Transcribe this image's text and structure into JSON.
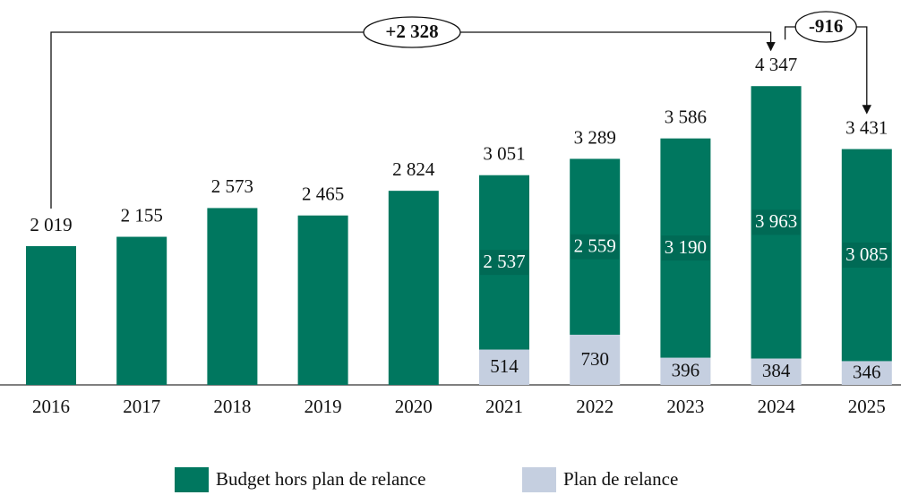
{
  "chart_data": {
    "type": "stacked_bar",
    "categories": [
      "2016",
      "2017",
      "2018",
      "2019",
      "2020",
      "2021",
      "2022",
      "2023",
      "2024",
      "2025"
    ],
    "series": [
      {
        "name": "Budget hors plan de relance",
        "color": "#00775f",
        "values": [
          2019,
          2155,
          2573,
          2465,
          2824,
          2537,
          2559,
          3190,
          3963,
          3085
        ],
        "value_labels": [
          null,
          null,
          null,
          null,
          null,
          "2 537",
          "2 559",
          "3 190",
          "3 963",
          "3 085"
        ]
      },
      {
        "name": "Plan de relance",
        "color": "#c5cfe0",
        "values": [
          null,
          null,
          null,
          null,
          null,
          514,
          730,
          396,
          384,
          346
        ]
      }
    ],
    "totals": [
      2019,
      2155,
      2573,
      2465,
      2824,
      3051,
      3289,
      3586,
      4347,
      3431
    ],
    "total_labels": [
      "2 019",
      "2 155",
      "2 573",
      "2 465",
      "2 824",
      "3 051",
      "3 289",
      "3 586",
      "4 347",
      "3 431"
    ],
    "annotations": [
      {
        "text": "+2 328",
        "from": 0,
        "to": 8
      },
      {
        "text": "-916",
        "from": 8,
        "to": 9
      }
    ],
    "ylim": [
      0,
      5600
    ],
    "legend": "bottom"
  }
}
